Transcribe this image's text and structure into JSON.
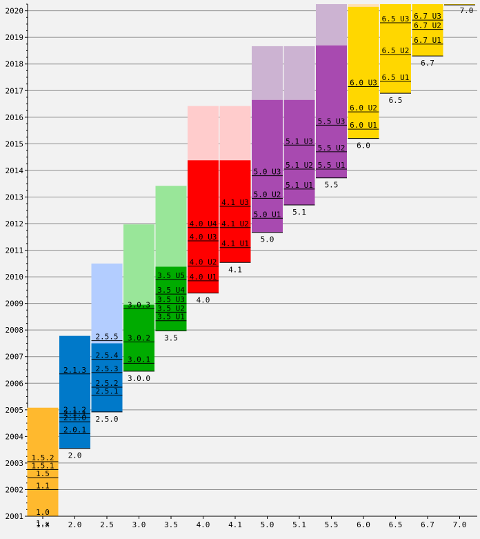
{
  "chart_data": {
    "type": "bar",
    "title": "",
    "xlabel": "",
    "ylabel": "",
    "ylim": [
      2001,
      2020.25
    ],
    "y_ticks": [
      "2001",
      "2002",
      "2003",
      "2004",
      "2005",
      "2006",
      "2007",
      "2008",
      "2009",
      "2010",
      "2011",
      "2012",
      "2013",
      "2014",
      "2015",
      "2016",
      "2017",
      "2018",
      "2019",
      "2020"
    ],
    "grid": true,
    "legend": "none",
    "categories": [
      "1.x",
      "2.0",
      "2.5",
      "3.0",
      "3.5",
      "4.0",
      "4.1",
      "5.0",
      "5.1",
      "5.5",
      "6.0",
      "6.5",
      "6.7",
      "7.0"
    ],
    "releases": [
      {
        "name": "1.x",
        "start": 2001.0,
        "end": 2005.08,
        "support_end": null,
        "color": "#ffb92e",
        "fade": null,
        "updates": [
          {
            "label": "1.0",
            "y": 2001.0
          },
          {
            "label": "1.1",
            "y": 2002.0
          },
          {
            "label": "1.5",
            "y": 2002.45
          },
          {
            "label": "1.5.1",
            "y": 2002.75
          },
          {
            "label": "1.5.2",
            "y": 2003.05
          }
        ]
      },
      {
        "name": "2.0",
        "start": 2003.55,
        "end": 2007.78,
        "support_end": null,
        "color": "#0079c9",
        "fade": null,
        "updates": [
          {
            "label": "2.0.1",
            "y": 2004.1
          },
          {
            "label": "2.1.0",
            "y": 2004.55
          },
          {
            "label": "2.1.1",
            "y": 2004.72
          },
          {
            "label": "2.1.2",
            "y": 2004.85
          },
          {
            "label": "2.1.3",
            "y": 2006.35
          }
        ]
      },
      {
        "name": "2.5.0",
        "start": 2004.92,
        "end": 2007.5,
        "support_end": 2010.5,
        "color": "#0079c9",
        "fade": "#b3cdff",
        "updates": [
          {
            "label": "2.5.1",
            "y": 2005.55
          },
          {
            "label": "2.5.2",
            "y": 2005.85
          },
          {
            "label": "2.5.3",
            "y": 2006.4
          },
          {
            "label": "2.5.4",
            "y": 2006.9
          },
          {
            "label": "2.5.5",
            "y": 2007.6
          }
        ]
      },
      {
        "name": "3.0.0",
        "start": 2006.45,
        "end": 2008.95,
        "support_end": 2011.97,
        "color": "#00ab00",
        "fade": "#99e699",
        "updates": [
          {
            "label": "3.0.1",
            "y": 2006.75
          },
          {
            "label": "3.0.2",
            "y": 2007.55
          },
          {
            "label": "3.0.3",
            "y": 2008.8
          }
        ]
      },
      {
        "name": "3.5",
        "start": 2007.97,
        "end": 2010.38,
        "support_end": 2013.42,
        "color": "#00ab00",
        "fade": "#99e699",
        "updates": [
          {
            "label": "3.5 U1",
            "y": 2008.35
          },
          {
            "label": "3.5 U2",
            "y": 2008.67
          },
          {
            "label": "3.5 U3",
            "y": 2009.0
          },
          {
            "label": "3.5 U4",
            "y": 2009.35
          },
          {
            "label": "3.5 U5",
            "y": 2009.9
          }
        ]
      },
      {
        "name": "4.0",
        "start": 2009.39,
        "end": 2014.38,
        "support_end": 2016.42,
        "color": "#ff0000",
        "fade": "#ffcccc",
        "updates": [
          {
            "label": "4.0 U1",
            "y": 2009.85
          },
          {
            "label": "4.0 U2",
            "y": 2010.4
          },
          {
            "label": "4.0 U3",
            "y": 2011.35
          },
          {
            "label": "4.0 U4",
            "y": 2011.85
          }
        ]
      },
      {
        "name": "4.1",
        "start": 2010.54,
        "end": 2014.38,
        "support_end": 2016.42,
        "color": "#ff0000",
        "fade": "#ffcccc",
        "updates": [
          {
            "label": "4.1 U1",
            "y": 2011.1
          },
          {
            "label": "4.1 U2",
            "y": 2011.85
          },
          {
            "label": "4.1 U3",
            "y": 2012.65
          }
        ]
      },
      {
        "name": "5.0",
        "start": 2011.67,
        "end": 2016.65,
        "support_end": 2018.67,
        "color": "#a84ab0",
        "fade": "#ccb3d2",
        "updates": [
          {
            "label": "5.0 U1",
            "y": 2012.2
          },
          {
            "label": "5.0 U2",
            "y": 2012.95
          },
          {
            "label": "5.0 U3",
            "y": 2013.8
          }
        ]
      },
      {
        "name": "5.1",
        "start": 2012.7,
        "end": 2016.65,
        "support_end": 2018.67,
        "color": "#a84ab0",
        "fade": "#ccb3d2",
        "updates": [
          {
            "label": "5.1 U1",
            "y": 2013.3
          },
          {
            "label": "5.1 U2",
            "y": 2014.05
          },
          {
            "label": "5.1 U3",
            "y": 2014.95
          }
        ]
      },
      {
        "name": "5.5",
        "start": 2013.72,
        "end": 2018.7,
        "support_end": 2020.25,
        "color": "#a84ab0",
        "fade": "#ccb3d2",
        "updates": [
          {
            "label": "5.5 U1",
            "y": 2014.05
          },
          {
            "label": "5.5 U2",
            "y": 2014.7
          },
          {
            "label": "5.5 U3",
            "y": 2015.7
          }
        ]
      },
      {
        "name": "6.0",
        "start": 2015.2,
        "end": 2020.15,
        "support_end": 2020.25,
        "color": "#ffd700",
        "fade": "#ffe0b3",
        "updates": [
          {
            "label": "6.0 U1",
            "y": 2015.55
          },
          {
            "label": "6.0 U2",
            "y": 2016.2
          },
          {
            "label": "6.0 U3",
            "y": 2017.15
          }
        ]
      },
      {
        "name": "6.5",
        "start": 2016.9,
        "end": 2020.25,
        "support_end": null,
        "color": "#ffd700",
        "fade": null,
        "updates": [
          {
            "label": "6.5 U1",
            "y": 2017.35
          },
          {
            "label": "6.5 U2",
            "y": 2018.35
          },
          {
            "label": "6.5 U3",
            "y": 2019.55
          }
        ]
      },
      {
        "name": "6.7",
        "start": 2018.3,
        "end": 2020.25,
        "support_end": null,
        "color": "#ffd700",
        "fade": null,
        "updates": [
          {
            "label": "6.7 U1",
            "y": 2018.75
          },
          {
            "label": "6.7 U2",
            "y": 2019.3
          },
          {
            "label": "6.7 U3",
            "y": 2019.65
          }
        ]
      },
      {
        "name": "7.0",
        "start": 2020.22,
        "end": 2020.25,
        "support_end": null,
        "color": "#ffd700",
        "fade": null,
        "updates": []
      }
    ]
  }
}
